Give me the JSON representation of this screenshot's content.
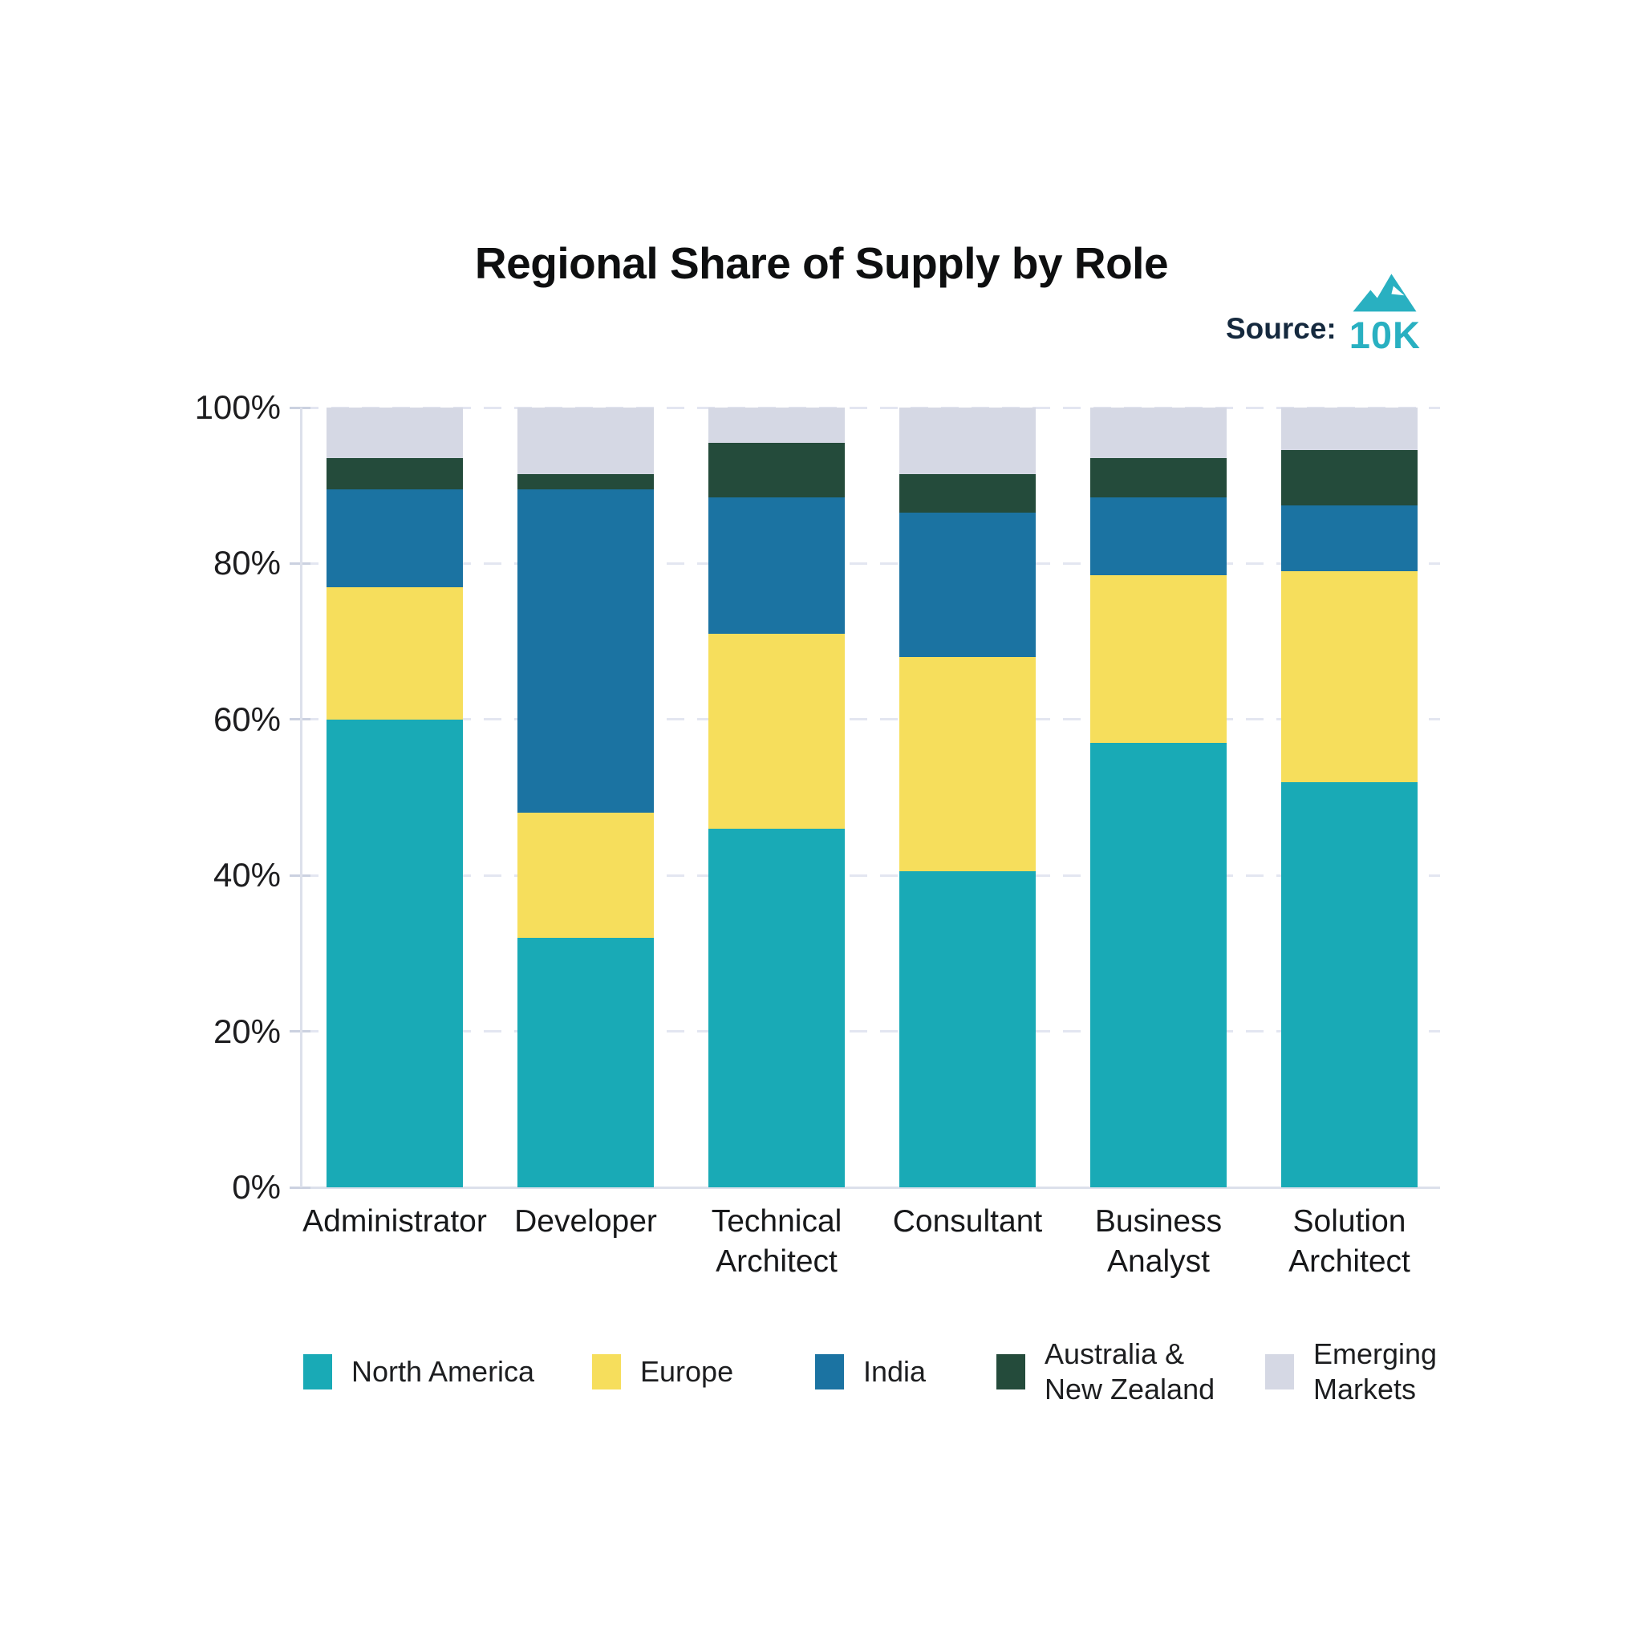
{
  "header": {
    "title": "Regional Share of Supply by Role",
    "source_label": "Source:",
    "source_logo_text": "10K"
  },
  "chart_data": {
    "type": "bar",
    "stacked": true,
    "units": "percent",
    "title": "Regional Share of Supply by Role",
    "xlabel": "",
    "ylabel": "",
    "ylim": [
      0,
      100
    ],
    "y_ticks": [
      "0%",
      "20%",
      "40%",
      "60%",
      "80%",
      "100%"
    ],
    "grid": "dashed horizontal",
    "legend_position": "bottom",
    "categories": [
      "Administrator",
      "Developer",
      "Technical Architect",
      "Consultant",
      "Business Analyst",
      "Solution Architect"
    ],
    "category_lines": [
      [
        "Administrator"
      ],
      [
        "Developer"
      ],
      [
        "Technical",
        "Architect"
      ],
      [
        "Consultant"
      ],
      [
        "Business",
        "Analyst"
      ],
      [
        "Solution",
        "Architect"
      ]
    ],
    "series": [
      {
        "name": "North America",
        "legend_lines": [
          "North America"
        ],
        "color": "#19aab6",
        "values": [
          60,
          32,
          46,
          40.5,
          57,
          52
        ]
      },
      {
        "name": "Europe",
        "legend_lines": [
          "Europe"
        ],
        "color": "#f6de5c",
        "values": [
          17,
          16,
          25,
          27.5,
          21.5,
          27
        ]
      },
      {
        "name": "India",
        "legend_lines": [
          "India"
        ],
        "color": "#1b73a2",
        "values": [
          12.5,
          41.5,
          17.5,
          18.5,
          10,
          8.5
        ]
      },
      {
        "name": "Australia & New Zealand",
        "legend_lines": [
          "Australia &",
          "New Zealand"
        ],
        "color": "#244b3b",
        "values": [
          4,
          2,
          7,
          5,
          5,
          7
        ]
      },
      {
        "name": "Emerging Markets",
        "legend_lines": [
          "Emerging",
          "Markets"
        ],
        "color": "#d5d8e4",
        "values": [
          6.5,
          8.5,
          4.5,
          8.5,
          6.5,
          5.5
        ]
      }
    ],
    "colors": {
      "accent_teal": "#29b0c1",
      "source_text": "#15293e",
      "gridline": "#e3e6f1",
      "axis": "#dce0eb"
    }
  }
}
